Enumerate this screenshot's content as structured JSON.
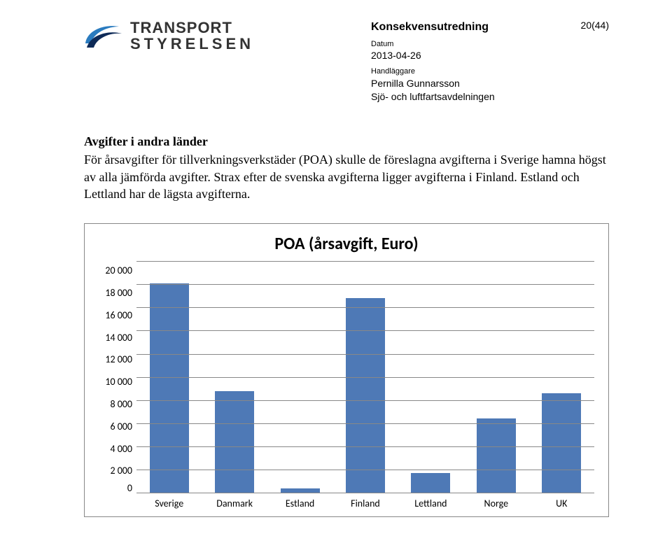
{
  "header": {
    "logo": {
      "line1": "TRANSPORT",
      "line2": "STYRELSEN",
      "swoosh_blue": "#2a7bbf",
      "swoosh_navy": "#0e2a57"
    },
    "doc_type": "Konsekvensutredning",
    "label_date": "Datum",
    "date": "2013-04-26",
    "label_handler": "Handläggare",
    "handler": "Pernilla Gunnarsson",
    "department": "Sjö- och luftfartsavdelningen",
    "page_num": "20(44)"
  },
  "body": {
    "heading": "Avgifter i andra länder",
    "paragraph": "För årsavgifter för tillverkningsverkstäder (POA) skulle de föreslagna avgifterna i Sverige hamna högst av alla jämförda avgifter. Strax efter de svenska avgifterna ligger avgifterna i Finland. Estland och Lettland har de lägsta avgifterna."
  },
  "chart": {
    "type": "bar",
    "title": "POA (årsavgift, Euro)",
    "title_fontsize": 24,
    "ylim": [
      0,
      20000
    ],
    "ytick_step": 2000,
    "yticks": [
      20000,
      18000,
      16000,
      14000,
      12000,
      10000,
      8000,
      6000,
      4000,
      2000,
      0
    ],
    "ytick_labels": [
      "20 000",
      "18 000",
      "16 000",
      "14 000",
      "12 000",
      "10 000",
      "8 000",
      "6 000",
      "4 000",
      "2 000",
      "0"
    ],
    "categories": [
      "Sverige",
      "Danmark",
      "Estland",
      "Finland",
      "Lettland",
      "Norge",
      "UK"
    ],
    "values": [
      18100,
      8800,
      400,
      16800,
      1700,
      6400,
      8600
    ],
    "bar_color": "#4e79b6",
    "grid_color": "#888888",
    "background_color": "#ffffff",
    "label_fontsize": 14,
    "bar_width": 0.6
  }
}
